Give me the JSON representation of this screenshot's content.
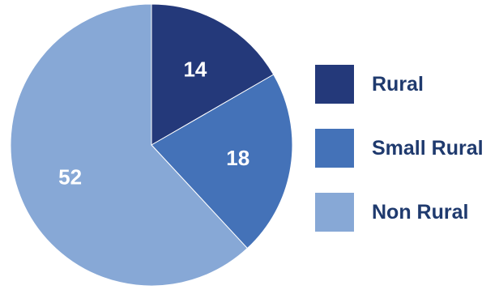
{
  "chart_data": {
    "type": "pie",
    "slices": [
      {
        "label": "Rural",
        "value": 14,
        "color": "#24397a"
      },
      {
        "label": "Small Rural",
        "value": 18,
        "color": "#4472b8"
      },
      {
        "label": "Non Rural",
        "value": 52,
        "color": "#87a8d6"
      }
    ],
    "data_labels": [
      "14",
      "18",
      "52"
    ],
    "legend": {
      "position": "right",
      "entries": [
        "Rural",
        "Small Rural",
        "Non Rural"
      ]
    }
  },
  "colors": {
    "legend_text": "#1f3a6e",
    "slice_label": "#ffffff",
    "background": "#ffffff"
  }
}
